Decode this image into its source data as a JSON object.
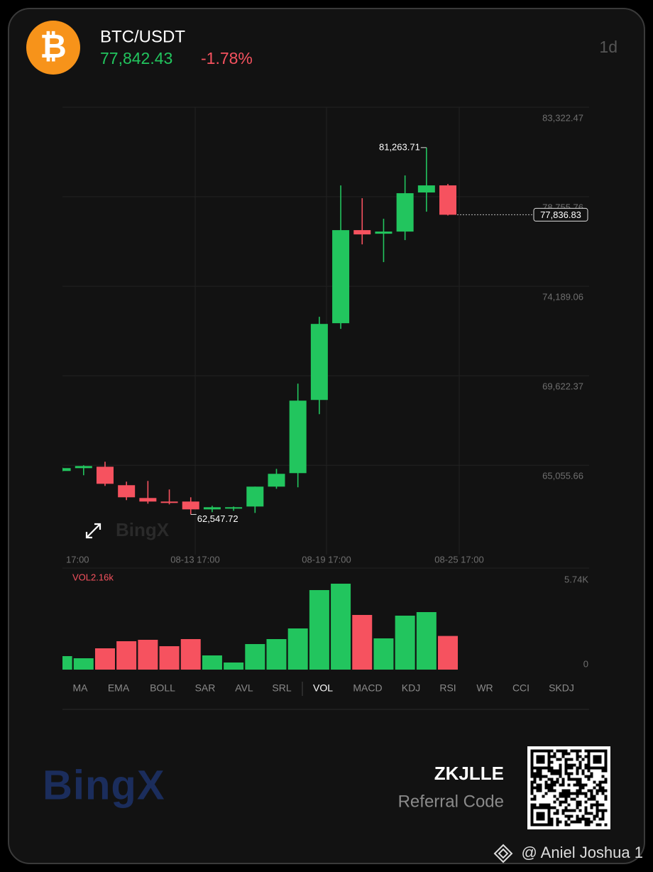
{
  "header": {
    "pair": "BTC/USDT",
    "price": "77,842.43",
    "change": "-1.78%",
    "interval": "1d"
  },
  "brand": "BingX",
  "chart_data": [
    {
      "type": "candlestick",
      "open": [
        64765,
        64910,
        64982,
        64040,
        63387,
        63206,
        63206,
        62807,
        62844,
        62952,
        63967,
        64656,
        68389,
        72304,
        77052,
        76870,
        76979,
        78973,
        79335
      ],
      "high": [
        64947,
        65055,
        65236,
        64221,
        64257,
        63822,
        63423,
        62989,
        62952,
        63967,
        64873,
        69223,
        72630,
        79335,
        78683,
        77632,
        79842,
        81263.71,
        79408
      ],
      "low": [
        64729,
        64547,
        64003,
        63279,
        63097,
        63061,
        62547.72,
        62662,
        62735,
        62626,
        63858,
        63931,
        67664,
        72014,
        76327,
        75421,
        76544,
        77994,
        77800
      ],
      "close": [
        64910,
        65018,
        64112,
        63423,
        63206,
        63134,
        62807,
        62916,
        62916,
        63967,
        64620,
        68353,
        72267,
        77052,
        76834,
        76979,
        78936,
        79335,
        77836.83
      ],
      "up_color": "#22c55e",
      "down_color": "#f6525f",
      "ylim": [
        60500,
        83322.47
      ],
      "yticks": [
        {
          "value": 83322.47,
          "label": "83,322.47"
        },
        {
          "value": 78755.76,
          "label": "78,755.76"
        },
        {
          "value": 74189.06,
          "label": "74,189.06"
        },
        {
          "value": 69622.37,
          "label": "69,622.37"
        },
        {
          "value": 65055.66,
          "label": "65,055.66"
        }
      ],
      "grid": true,
      "x_labels": [
        "17:00",
        "08-13 17:00",
        "08-19 17:00",
        "08-25 17:00"
      ],
      "annotations": {
        "high": {
          "value": 81263.71,
          "label": "81,263.71"
        },
        "low": {
          "value": 62547.72,
          "label": "62,547.72"
        },
        "last": {
          "value": 77836.83,
          "label": "77,836.83"
        }
      }
    },
    {
      "type": "bar",
      "title": "VOL2.16k",
      "values": [
        866,
        729,
        1367,
        1822,
        1913,
        1503,
        1959,
        911,
        456,
        1640,
        1959,
        2642,
        5103,
        5513,
        3508,
        2005,
        3462,
        3690,
        2160
      ],
      "colors": [
        "#22c55e",
        "#22c55e",
        "#f6525f",
        "#f6525f",
        "#f6525f",
        "#f6525f",
        "#f6525f",
        "#22c55e",
        "#22c55e",
        "#22c55e",
        "#22c55e",
        "#22c55e",
        "#22c55e",
        "#22c55e",
        "#f6525f",
        "#22c55e",
        "#22c55e",
        "#22c55e",
        "#f6525f"
      ],
      "ylim": [
        0,
        5740
      ],
      "yticks": [
        {
          "value": 5740,
          "label": "5.74K"
        },
        0
      ]
    }
  ],
  "indicators": [
    "MA",
    "EMA",
    "BOLL",
    "SAR",
    "AVL",
    "SRL",
    "VOL",
    "MACD",
    "KDJ",
    "RSI",
    "WR",
    "CCI",
    "SKDJ"
  ],
  "active_indicator": "VOL",
  "footer": {
    "code": "ZKJLLE",
    "code_label": "Referral Code",
    "watermark": "@ Aniel Joshua 1"
  }
}
